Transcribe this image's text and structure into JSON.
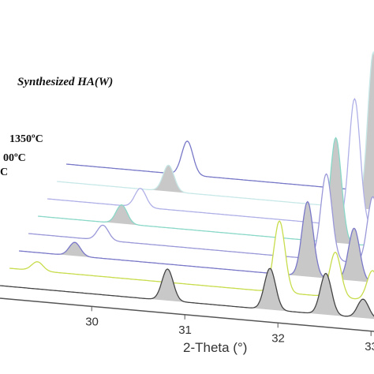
{
  "chart_data": {
    "type": "area",
    "title": "Synthesized HA(W)",
    "xlabel": "2-Theta (°)",
    "ylabel": "",
    "x_ticks": [
      "30",
      "31",
      "32",
      "33"
    ],
    "x_range": [
      29.1,
      33.4
    ],
    "series_labels": [
      "1350ºC",
      "00ºC",
      "C"
    ],
    "series": [
      {
        "peaks": [
          [
            30.9,
            0.42
          ],
          [
            32.0,
            0.55
          ],
          [
            32.6,
            0.55
          ],
          [
            33.0,
            0.25
          ]
        ],
        "color": "#444444"
      },
      {
        "peaks": [
          [
            29.4,
            0.12
          ],
          [
            32.0,
            0.95
          ],
          [
            32.6,
            0.6
          ],
          [
            33.0,
            0.4
          ]
        ],
        "color": "#c8dc4c"
      },
      {
        "peaks": [
          [
            29.7,
            0.18
          ],
          [
            32.2,
            1.0
          ],
          [
            32.7,
            0.7
          ],
          [
            33.1,
            0.45
          ]
        ],
        "color": "#7a78c8"
      },
      {
        "peaks": [
          [
            29.9,
            0.2
          ],
          [
            32.3,
            1.15
          ],
          [
            32.8,
            0.9
          ],
          [
            33.2,
            0.5
          ]
        ],
        "color": "#9a98d8"
      },
      {
        "peaks": [
          [
            30.0,
            0.25
          ],
          [
            32.3,
            1.4
          ],
          [
            32.8,
            1.1
          ],
          [
            33.2,
            0.6
          ]
        ],
        "color": "#8ad8c8"
      },
      {
        "peaks": [
          [
            30.1,
            0.25
          ],
          [
            32.4,
            1.7
          ],
          [
            32.9,
            1.3
          ],
          [
            33.3,
            0.7
          ]
        ],
        "color": "#b0b0e8"
      },
      {
        "peaks": [
          [
            30.3,
            0.35
          ],
          [
            32.5,
            2.1
          ],
          [
            32.9,
            1.7
          ],
          [
            33.3,
            0.8
          ]
        ],
        "color": "#c8e8e8"
      },
      {
        "peaks": [
          [
            30.4,
            0.45
          ],
          [
            32.5,
            2.5
          ],
          [
            33.0,
            2.0
          ],
          [
            33.4,
            0.9
          ]
        ],
        "color": "#7878c8"
      }
    ]
  }
}
